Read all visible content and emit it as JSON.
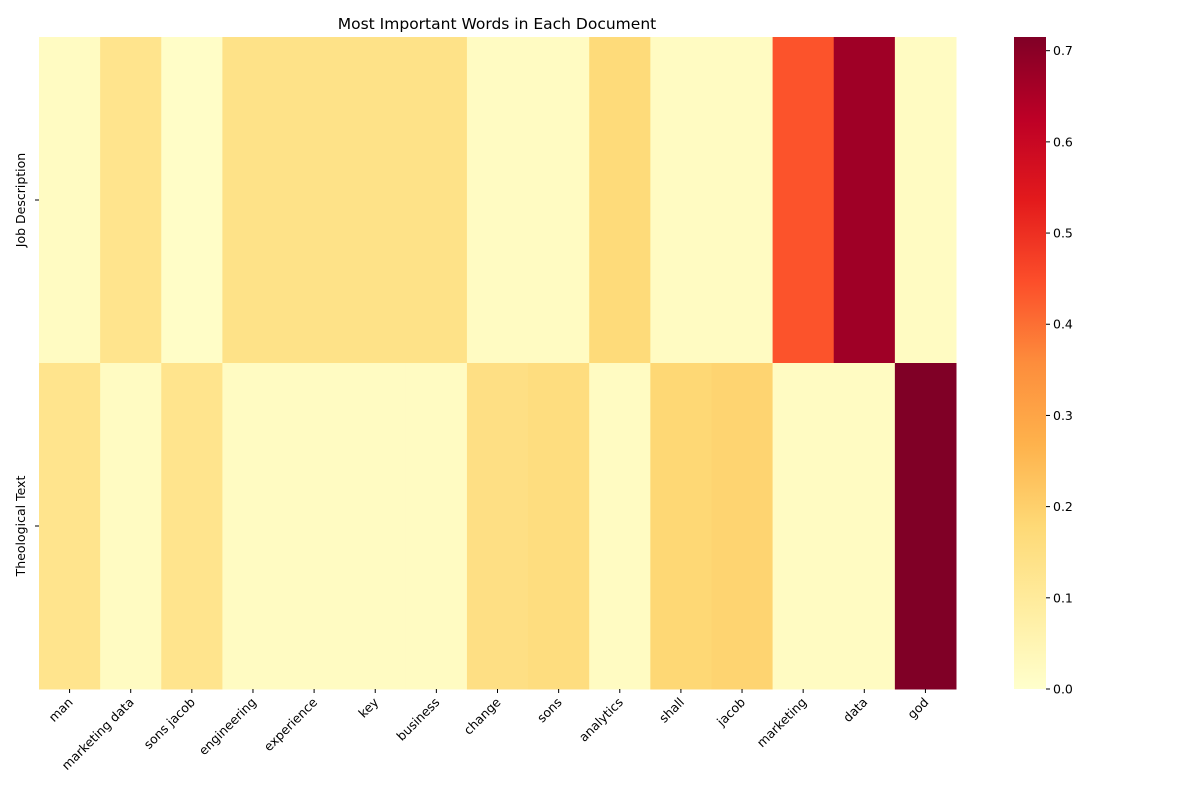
{
  "chart_data": {
    "type": "heatmap",
    "title": "Most Important Words in Each Document",
    "xlabel": "",
    "ylabel": "",
    "columns": [
      "man",
      "marketing data",
      "sons jacob",
      "engineering",
      "experience",
      "key",
      "business",
      "change",
      "sons",
      "analytics",
      "shall",
      "jacob",
      "marketing",
      "data",
      "god"
    ],
    "rows": [
      "Job Description",
      "Theological Text"
    ],
    "values": [
      [
        0.02,
        0.13,
        0.01,
        0.14,
        0.14,
        0.14,
        0.14,
        0.02,
        0.02,
        0.17,
        0.02,
        0.02,
        0.44,
        0.67,
        0.02
      ],
      [
        0.13,
        0.02,
        0.13,
        0.02,
        0.02,
        0.02,
        0.02,
        0.15,
        0.16,
        0.02,
        0.18,
        0.19,
        0.02,
        0.02,
        0.72
      ]
    ],
    "colorbar": {
      "colormap": "YlOrRd",
      "vmin": 0.0,
      "vmax": 0.715,
      "ticks": [
        "0.0",
        "0.1",
        "0.2",
        "0.3",
        "0.4",
        "0.5",
        "0.6",
        "0.7"
      ]
    },
    "grid": false,
    "legend": "colorbar-right"
  }
}
